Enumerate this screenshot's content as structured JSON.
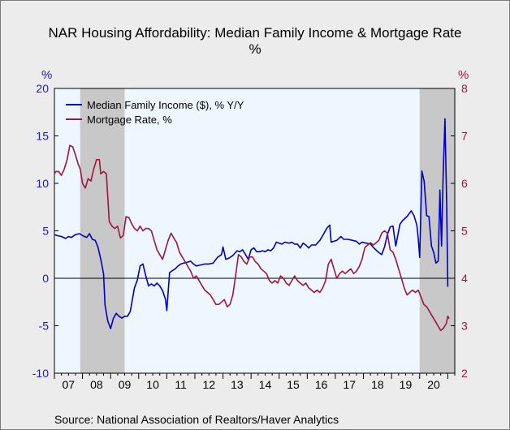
{
  "title_line1": "NAR Housing Affordability: Median Family Income & Mortgage Rate",
  "title_line2": "%",
  "left_unit": "%",
  "right_unit": "%",
  "source": "Source:  National Association of Realtors/Haver Analytics",
  "colors": {
    "income": "#0000c0",
    "rate": "#a0153e",
    "left_axis": "#1a1ac8",
    "right_axis": "#a0153e",
    "plot_bg": "#eef6ff",
    "recession": "#c8c8c8"
  },
  "chart_data": {
    "type": "line",
    "x_axis": {
      "range": [
        2007.0,
        2021.25
      ],
      "tick_labels": [
        "07",
        "08",
        "09",
        "10",
        "11",
        "12",
        "13",
        "14",
        "15",
        "16",
        "17",
        "18",
        "19",
        "20"
      ],
      "tick_years": [
        2007,
        2008,
        2009,
        2010,
        2011,
        2012,
        2013,
        2014,
        2015,
        2016,
        2017,
        2018,
        2019,
        2020
      ]
    },
    "y_left": {
      "range": [
        -10,
        20
      ],
      "ticks": [
        -10,
        -5,
        0,
        5,
        10,
        15,
        20
      ]
    },
    "y_right": {
      "range": [
        2,
        8
      ],
      "ticks": [
        2,
        3,
        4,
        5,
        6,
        7,
        8
      ]
    },
    "recession_shading": [
      [
        2007.917,
        2009.5
      ],
      [
        2020.0,
        2021.25
      ]
    ],
    "legend_position": "top-left",
    "series": [
      {
        "name": "Median Family Income ($), % Y/Y",
        "axis": "left",
        "points": [
          [
            2007.0,
            4.6
          ],
          [
            2007.1,
            4.5
          ],
          [
            2007.25,
            4.4
          ],
          [
            2007.4,
            4.2
          ],
          [
            2007.5,
            4.4
          ],
          [
            2007.6,
            4.3
          ],
          [
            2007.75,
            4.6
          ],
          [
            2007.9,
            4.7
          ],
          [
            2008.0,
            4.5
          ],
          [
            2008.15,
            4.3
          ],
          [
            2008.25,
            4.7
          ],
          [
            2008.35,
            4.1
          ],
          [
            2008.45,
            4.0
          ],
          [
            2008.55,
            3.3
          ],
          [
            2008.65,
            2.0
          ],
          [
            2008.75,
            0.5
          ],
          [
            2008.8,
            -2.8
          ],
          [
            2008.9,
            -4.5
          ],
          [
            2009.0,
            -5.3
          ],
          [
            2009.1,
            -4.2
          ],
          [
            2009.2,
            -3.7
          ],
          [
            2009.3,
            -4.0
          ],
          [
            2009.4,
            -4.2
          ],
          [
            2009.5,
            -4.0
          ],
          [
            2009.6,
            -4.0
          ],
          [
            2009.7,
            -3.5
          ],
          [
            2009.85,
            -1.0
          ],
          [
            2009.95,
            -0.2
          ],
          [
            2010.05,
            1.3
          ],
          [
            2010.15,
            1.5
          ],
          [
            2010.25,
            0.3
          ],
          [
            2010.35,
            -0.8
          ],
          [
            2010.45,
            -0.6
          ],
          [
            2010.55,
            -0.8
          ],
          [
            2010.65,
            -0.5
          ],
          [
            2010.75,
            -0.8
          ],
          [
            2010.85,
            -1.3
          ],
          [
            2010.95,
            -2.2
          ],
          [
            2011.0,
            -3.4
          ],
          [
            2011.1,
            0.6
          ],
          [
            2011.2,
            0.8
          ],
          [
            2011.3,
            1.0
          ],
          [
            2011.4,
            1.3
          ],
          [
            2011.5,
            1.5
          ],
          [
            2011.6,
            1.6
          ],
          [
            2011.75,
            1.7
          ],
          [
            2011.85,
            1.8
          ],
          [
            2011.95,
            1.5
          ],
          [
            2012.05,
            1.3
          ],
          [
            2012.2,
            1.4
          ],
          [
            2012.35,
            1.5
          ],
          [
            2012.5,
            1.5
          ],
          [
            2012.65,
            1.6
          ],
          [
            2012.8,
            2.2
          ],
          [
            2012.95,
            2.5
          ],
          [
            2013.0,
            3.3
          ],
          [
            2013.1,
            2.0
          ],
          [
            2013.2,
            2.1
          ],
          [
            2013.35,
            2.4
          ],
          [
            2013.5,
            2.9
          ],
          [
            2013.6,
            2.8
          ],
          [
            2013.7,
            3.0
          ],
          [
            2013.8,
            2.5
          ],
          [
            2013.9,
            2.0
          ],
          [
            2014.0,
            3.0
          ],
          [
            2014.1,
            3.2
          ],
          [
            2014.2,
            2.8
          ],
          [
            2014.3,
            2.8
          ],
          [
            2014.4,
            2.9
          ],
          [
            2014.5,
            2.8
          ],
          [
            2014.6,
            3.0
          ],
          [
            2014.7,
            2.9
          ],
          [
            2014.8,
            3.2
          ],
          [
            2014.9,
            3.8
          ],
          [
            2015.0,
            3.7
          ],
          [
            2015.1,
            3.6
          ],
          [
            2015.2,
            3.8
          ],
          [
            2015.35,
            3.7
          ],
          [
            2015.45,
            3.8
          ],
          [
            2015.55,
            3.6
          ],
          [
            2015.65,
            3.6
          ],
          [
            2015.75,
            3.2
          ],
          [
            2015.85,
            3.7
          ],
          [
            2015.95,
            3.5
          ],
          [
            2016.05,
            3.2
          ],
          [
            2016.15,
            3.5
          ],
          [
            2016.3,
            3.5
          ],
          [
            2016.45,
            4.0
          ],
          [
            2016.55,
            4.5
          ],
          [
            2016.7,
            5.3
          ],
          [
            2016.8,
            5.6
          ],
          [
            2016.85,
            3.8
          ],
          [
            2016.95,
            3.9
          ],
          [
            2017.05,
            4.0
          ],
          [
            2017.2,
            4.4
          ],
          [
            2017.3,
            4.1
          ],
          [
            2017.45,
            4.1
          ],
          [
            2017.6,
            4.0
          ],
          [
            2017.75,
            3.9
          ],
          [
            2017.85,
            3.6
          ],
          [
            2017.95,
            3.8
          ],
          [
            2018.1,
            3.7
          ],
          [
            2018.25,
            3.6
          ],
          [
            2018.4,
            3.1
          ],
          [
            2018.55,
            2.7
          ],
          [
            2018.65,
            2.5
          ],
          [
            2018.75,
            3.3
          ],
          [
            2018.85,
            4.6
          ],
          [
            2018.95,
            5.4
          ],
          [
            2019.05,
            5.5
          ],
          [
            2019.15,
            3.4
          ],
          [
            2019.3,
            5.7
          ],
          [
            2019.4,
            6.1
          ],
          [
            2019.55,
            6.5
          ],
          [
            2019.7,
            7.1
          ],
          [
            2019.8,
            6.6
          ],
          [
            2019.9,
            5.6
          ],
          [
            2019.95,
            4.2
          ],
          [
            2020.0,
            2.2
          ],
          [
            2020.08,
            11.3
          ],
          [
            2020.16,
            10.2
          ],
          [
            2020.25,
            6.6
          ],
          [
            2020.33,
            6.5
          ],
          [
            2020.42,
            3.4
          ],
          [
            2020.5,
            2.7
          ],
          [
            2020.58,
            1.6
          ],
          [
            2020.66,
            1.8
          ],
          [
            2020.72,
            9.3
          ],
          [
            2020.78,
            3.4
          ],
          [
            2020.84,
            11.2
          ],
          [
            2020.9,
            16.8
          ],
          [
            2020.96,
            8.0
          ],
          [
            2021.0,
            -0.9
          ]
        ]
      },
      {
        "name": "Mortgage Rate, %",
        "axis": "right",
        "points": [
          [
            2007.0,
            6.2
          ],
          [
            2007.05,
            6.25
          ],
          [
            2007.15,
            6.25
          ],
          [
            2007.25,
            6.17
          ],
          [
            2007.35,
            6.3
          ],
          [
            2007.45,
            6.5
          ],
          [
            2007.55,
            6.8
          ],
          [
            2007.65,
            6.77
          ],
          [
            2007.75,
            6.6
          ],
          [
            2007.85,
            6.4
          ],
          [
            2007.92,
            6.3
          ],
          [
            2008.0,
            6.0
          ],
          [
            2008.1,
            5.9
          ],
          [
            2008.2,
            6.1
          ],
          [
            2008.3,
            6.05
          ],
          [
            2008.4,
            6.3
          ],
          [
            2008.5,
            6.5
          ],
          [
            2008.6,
            6.5
          ],
          [
            2008.65,
            6.2
          ],
          [
            2008.75,
            6.25
          ],
          [
            2008.85,
            6.2
          ],
          [
            2008.95,
            5.2
          ],
          [
            2009.05,
            5.1
          ],
          [
            2009.15,
            5.05
          ],
          [
            2009.25,
            5.1
          ],
          [
            2009.35,
            4.85
          ],
          [
            2009.45,
            4.9
          ],
          [
            2009.55,
            5.3
          ],
          [
            2009.65,
            5.28
          ],
          [
            2009.75,
            5.15
          ],
          [
            2009.85,
            5.05
          ],
          [
            2009.95,
            5.0
          ],
          [
            2010.05,
            5.1
          ],
          [
            2010.15,
            5.0
          ],
          [
            2010.25,
            5.05
          ],
          [
            2010.35,
            5.05
          ],
          [
            2010.45,
            5.0
          ],
          [
            2010.55,
            4.8
          ],
          [
            2010.65,
            4.6
          ],
          [
            2010.75,
            4.5
          ],
          [
            2010.85,
            4.4
          ],
          [
            2010.95,
            4.6
          ],
          [
            2011.05,
            4.8
          ],
          [
            2011.15,
            4.95
          ],
          [
            2011.25,
            4.85
          ],
          [
            2011.35,
            4.75
          ],
          [
            2011.45,
            4.55
          ],
          [
            2011.55,
            4.45
          ],
          [
            2011.65,
            4.35
          ],
          [
            2011.75,
            4.25
          ],
          [
            2011.85,
            4.15
          ],
          [
            2011.95,
            4.0
          ],
          [
            2012.05,
            4.05
          ],
          [
            2012.15,
            3.95
          ],
          [
            2012.25,
            3.85
          ],
          [
            2012.35,
            3.75
          ],
          [
            2012.45,
            3.7
          ],
          [
            2012.55,
            3.65
          ],
          [
            2012.65,
            3.55
          ],
          [
            2012.75,
            3.45
          ],
          [
            2012.85,
            3.45
          ],
          [
            2012.95,
            3.5
          ],
          [
            2013.05,
            3.55
          ],
          [
            2013.15,
            3.4
          ],
          [
            2013.25,
            3.45
          ],
          [
            2013.35,
            3.65
          ],
          [
            2013.45,
            4.05
          ],
          [
            2013.55,
            4.5
          ],
          [
            2013.65,
            4.45
          ],
          [
            2013.75,
            4.35
          ],
          [
            2013.85,
            4.3
          ],
          [
            2013.95,
            4.45
          ],
          [
            2014.05,
            4.45
          ],
          [
            2014.15,
            4.35
          ],
          [
            2014.25,
            4.3
          ],
          [
            2014.35,
            4.2
          ],
          [
            2014.45,
            4.15
          ],
          [
            2014.55,
            4.1
          ],
          [
            2014.65,
            3.95
          ],
          [
            2014.75,
            3.9
          ],
          [
            2014.85,
            3.95
          ],
          [
            2014.95,
            3.9
          ],
          [
            2015.05,
            4.05
          ],
          [
            2015.15,
            4.0
          ],
          [
            2015.25,
            3.9
          ],
          [
            2015.35,
            3.85
          ],
          [
            2015.45,
            3.95
          ],
          [
            2015.55,
            4.05
          ],
          [
            2015.65,
            3.95
          ],
          [
            2015.75,
            3.9
          ],
          [
            2015.85,
            3.85
          ],
          [
            2015.95,
            3.9
          ],
          [
            2016.05,
            3.8
          ],
          [
            2016.15,
            3.75
          ],
          [
            2016.25,
            3.7
          ],
          [
            2016.35,
            3.75
          ],
          [
            2016.45,
            3.7
          ],
          [
            2016.55,
            3.8
          ],
          [
            2016.65,
            3.95
          ],
          [
            2016.75,
            4.3
          ],
          [
            2016.85,
            4.4
          ],
          [
            2016.95,
            4.2
          ],
          [
            2017.05,
            4.0
          ],
          [
            2017.15,
            4.1
          ],
          [
            2017.25,
            4.15
          ],
          [
            2017.35,
            4.1
          ],
          [
            2017.45,
            4.15
          ],
          [
            2017.55,
            4.2
          ],
          [
            2017.65,
            4.1
          ],
          [
            2017.75,
            4.15
          ],
          [
            2017.85,
            4.25
          ],
          [
            2017.95,
            4.4
          ],
          [
            2018.05,
            4.65
          ],
          [
            2018.15,
            4.7
          ],
          [
            2018.25,
            4.75
          ],
          [
            2018.35,
            4.7
          ],
          [
            2018.45,
            4.75
          ],
          [
            2018.55,
            4.8
          ],
          [
            2018.65,
            4.95
          ],
          [
            2018.75,
            5.0
          ],
          [
            2018.85,
            4.95
          ],
          [
            2018.95,
            4.6
          ],
          [
            2019.05,
            4.55
          ],
          [
            2019.15,
            4.4
          ],
          [
            2019.25,
            4.2
          ],
          [
            2019.35,
            4.0
          ],
          [
            2019.45,
            3.8
          ],
          [
            2019.55,
            3.65
          ],
          [
            2019.65,
            3.7
          ],
          [
            2019.75,
            3.75
          ],
          [
            2019.85,
            3.7
          ],
          [
            2019.95,
            3.75
          ],
          [
            2020.05,
            3.6
          ],
          [
            2020.15,
            3.45
          ],
          [
            2020.25,
            3.4
          ],
          [
            2020.35,
            3.3
          ],
          [
            2020.45,
            3.2
          ],
          [
            2020.55,
            3.1
          ],
          [
            2020.65,
            3.0
          ],
          [
            2020.75,
            2.9
          ],
          [
            2020.85,
            2.95
          ],
          [
            2020.95,
            3.05
          ],
          [
            2021.0,
            3.2
          ],
          [
            2021.05,
            3.15
          ]
        ]
      }
    ]
  }
}
